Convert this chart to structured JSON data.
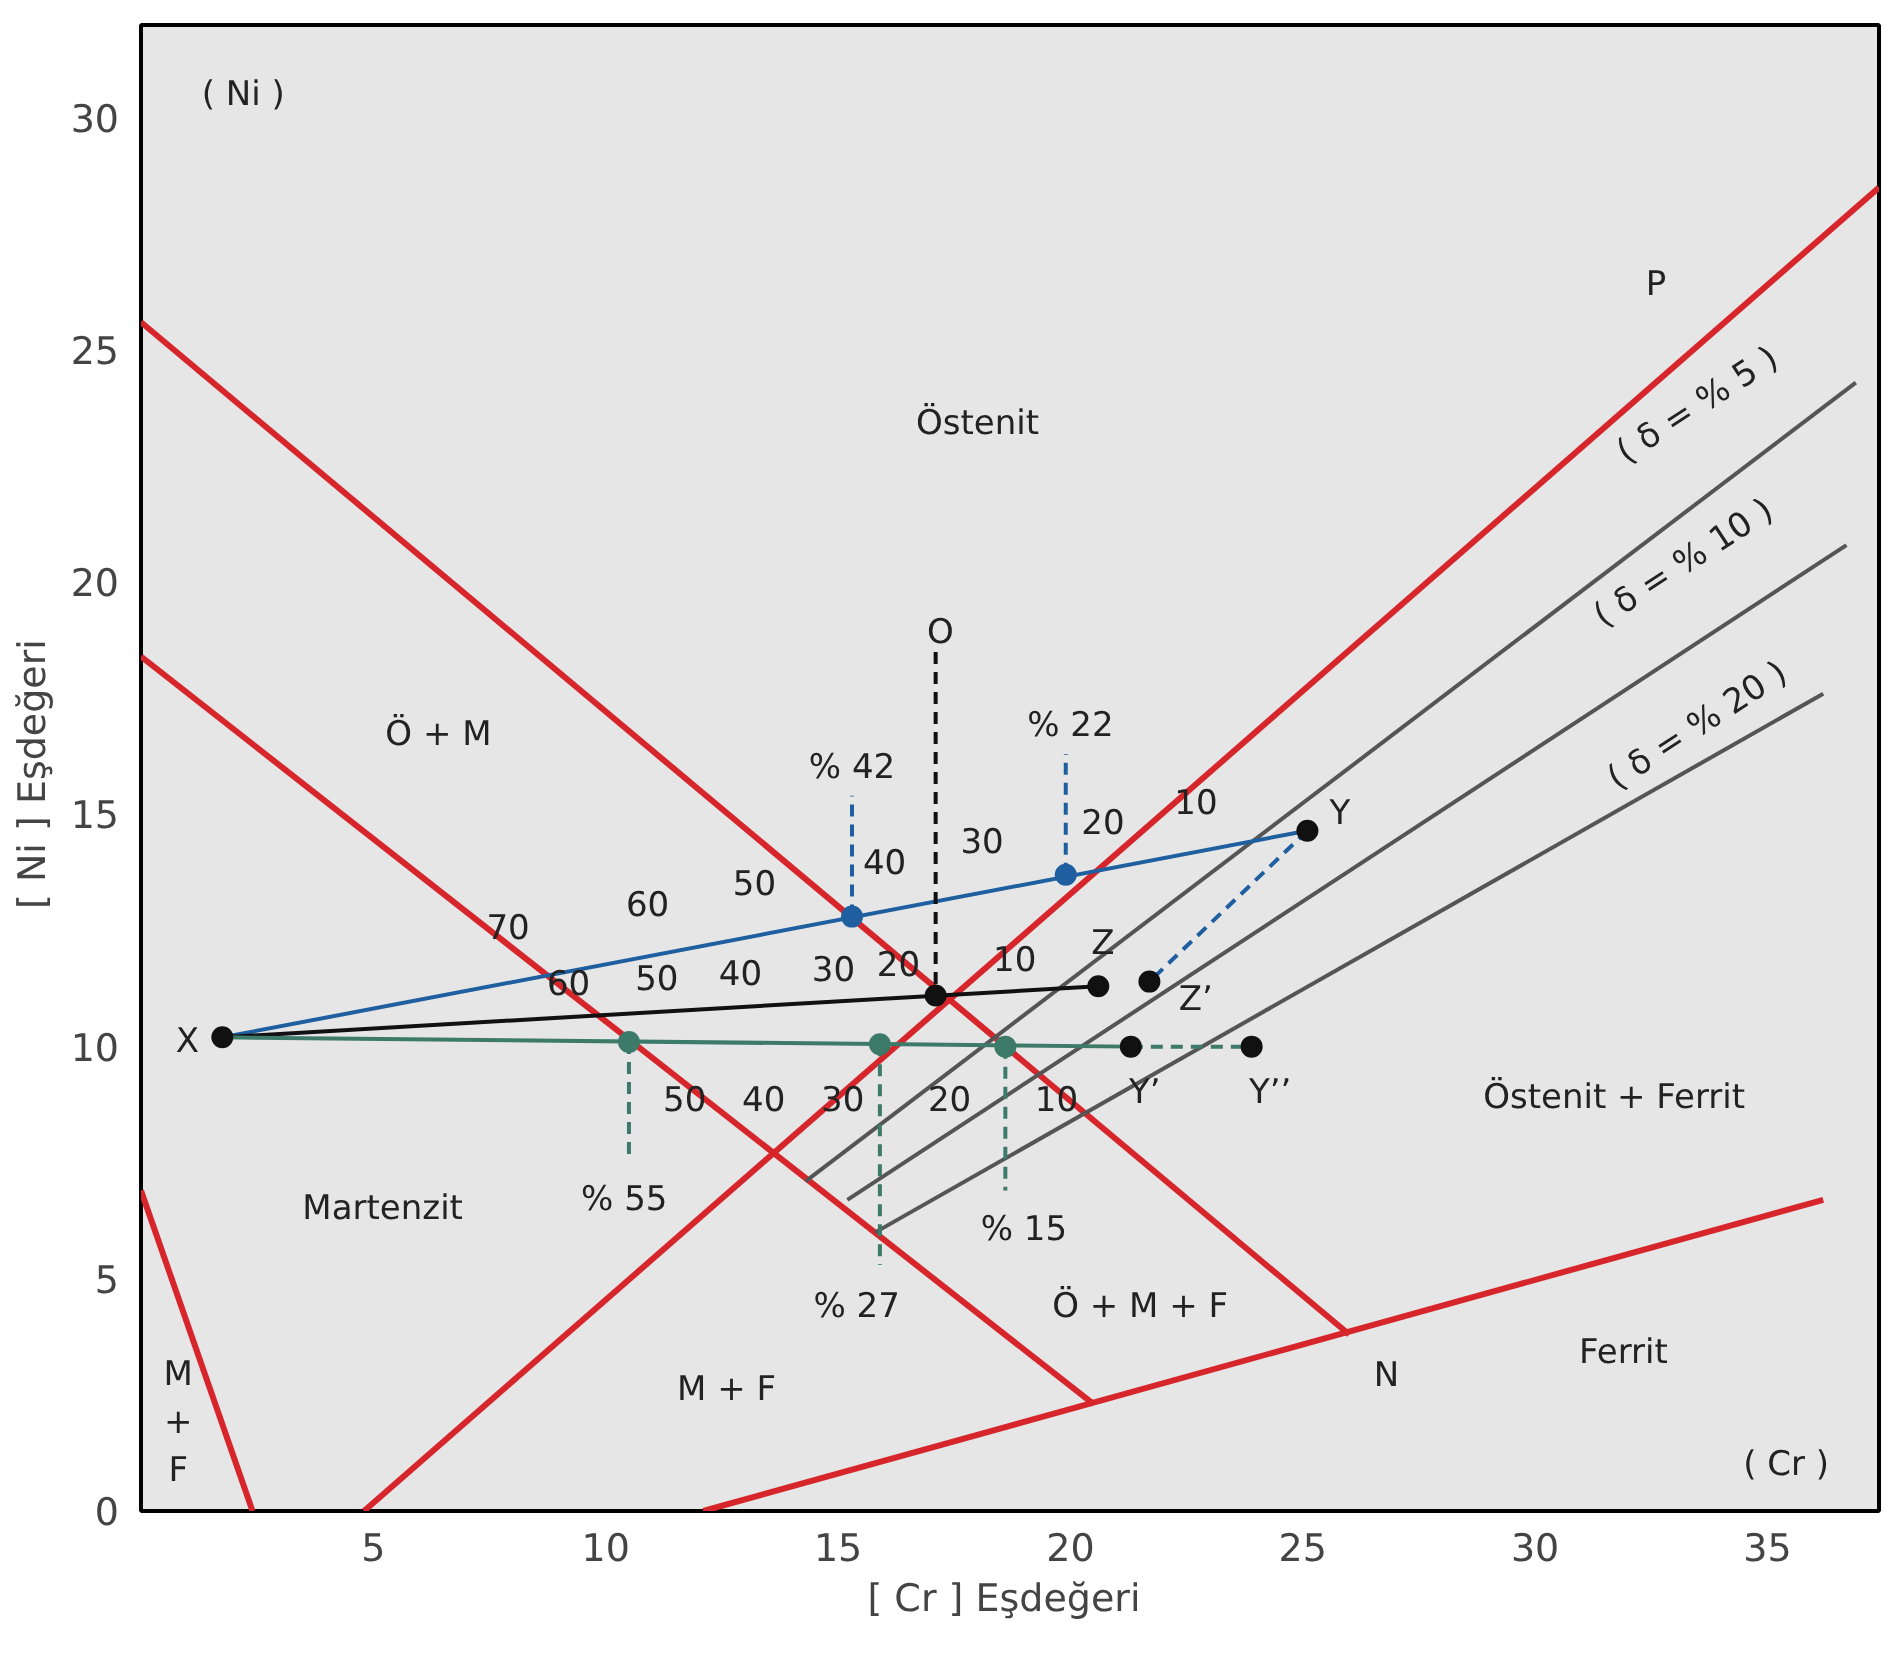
{
  "chart_data": {
    "type": "line",
    "xlabel": "[ Cr ]  Eşdeğeri",
    "ylabel": "[ Ni ]  Eşdeğeri",
    "xlim": [
      0,
      37.4
    ],
    "ylim": [
      0,
      32
    ],
    "xticks": [
      5,
      10,
      15,
      20,
      25,
      30,
      35
    ],
    "yticks": [
      0,
      5,
      10,
      15,
      20,
      25,
      30
    ],
    "grid": false,
    "line_style": "solid",
    "series": [
      {
        "color": "#d7262b",
        "x": [
          0,
          26.0
        ],
        "values": [
          25.6,
          3.8
        ]
      },
      {
        "color": "#d7262b",
        "x": [
          0,
          20.5
        ],
        "values": [
          18.4,
          2.3
        ]
      },
      {
        "color": "#d7262b",
        "x": [
          4.8,
          37.4
        ],
        "values": [
          0,
          28.5
        ]
      },
      {
        "color": "#d7262b",
        "x": [
          12.1,
          36.2
        ],
        "values": [
          0,
          6.7
        ]
      },
      {
        "color": "#d7262b",
        "x": [
          0,
          2.4
        ],
        "values": [
          6.9,
          0
        ]
      },
      {
        "color": "#555555",
        "x": [
          14.3,
          36.9
        ],
        "values": [
          7.1,
          24.3
        ]
      },
      {
        "color": "#555555",
        "x": [
          15.2,
          36.7
        ],
        "values": [
          6.7,
          20.8
        ]
      },
      {
        "color": "#555555",
        "x": [
          15.8,
          36.2
        ],
        "values": [
          6.0,
          17.6
        ]
      },
      {
        "color": "#1f5fa0",
        "x": [
          1.75,
          25.1
        ],
        "values": [
          10.2,
          14.65
        ]
      },
      {
        "color": "#111111",
        "x": [
          1.75,
          20.6
        ],
        "values": [
          10.2,
          11.3
        ]
      },
      {
        "color": "#3d7a6a",
        "x": [
          1.75,
          21.3
        ],
        "values": [
          10.2,
          10.0
        ]
      },
      {
        "color": "#3d7a6a",
        "x": [
          21.3,
          23.9
        ],
        "values": [
          10.0,
          10.0
        ],
        "line_style": "dashed"
      },
      {
        "color": "#1f5fa0",
        "x": [
          25.1,
          21.7
        ],
        "values": [
          14.65,
          11.4
        ],
        "line_style": "dashed"
      },
      {
        "color": "#111111",
        "x": [
          17.1,
          17.1
        ],
        "values": [
          18.5,
          11.1
        ],
        "line_style": "dashed"
      },
      {
        "color": "#1f5fa0",
        "x": [
          15.3,
          15.3
        ],
        "values": [
          12.8,
          15.4
        ],
        "line_style": "dashed"
      },
      {
        "color": "#1f5fa0",
        "x": [
          19.9,
          19.9
        ],
        "values": [
          13.7,
          16.3
        ],
        "line_style": "dashed"
      },
      {
        "color": "#3d7a6a",
        "x": [
          10.5,
          10.5
        ],
        "values": [
          10.1,
          7.6
        ],
        "line_style": "dashed"
      },
      {
        "color": "#3d7a6a",
        "x": [
          15.9,
          15.9
        ],
        "values": [
          10.05,
          5.3
        ],
        "line_style": "dashed"
      },
      {
        "color": "#3d7a6a",
        "x": [
          18.6,
          18.6
        ],
        "values": [
          10.0,
          6.9
        ],
        "line_style": "dashed"
      },
      {
        "type": "scatter",
        "marker": "circle",
        "color": "#111111",
        "x": [
          1.75,
          25.1,
          17.1,
          20.6,
          21.7,
          21.3,
          23.9
        ],
        "values": [
          10.2,
          14.65,
          11.1,
          11.3,
          11.4,
          10.0,
          10.0
        ]
      },
      {
        "type": "scatter",
        "marker": "circle",
        "color": "#1f5fa0",
        "x": [
          15.3,
          19.9
        ],
        "values": [
          12.8,
          13.7
        ]
      },
      {
        "type": "scatter",
        "marker": "circle",
        "color": "#3d7a6a",
        "x": [
          10.5,
          15.9,
          18.6
        ],
        "values": [
          10.1,
          10.05,
          10.0
        ]
      }
    ],
    "annotations": [
      "Östenit",
      "Ö + M",
      "Martenzit",
      "M + F",
      "Ö + M + F",
      "Östenit + Ferrit",
      "Ferrit",
      "M\n+\nF",
      "P",
      "N",
      "O",
      "X",
      "Y",
      "Z",
      "Z’",
      "Y’",
      "Y’’",
      "% 42",
      "% 22",
      "% 55",
      "% 27",
      "% 15",
      "( δ = % 5 )",
      "( δ = % 10 )",
      "( δ = % 20 )",
      "( Ni )",
      "( Cr )",
      "70",
      "60",
      "50",
      "40",
      "30",
      "20",
      "10",
      "60",
      "50",
      "40",
      "30",
      "20",
      "10",
      "50",
      "40",
      "30",
      "20",
      "10"
    ]
  }
}
